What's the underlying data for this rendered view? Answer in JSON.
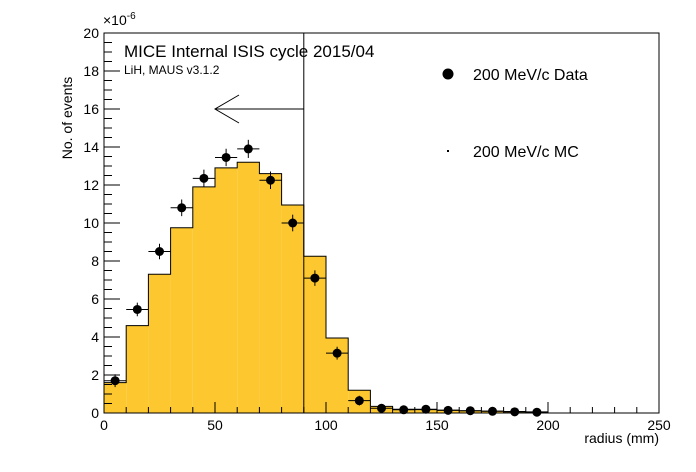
{
  "chart_data": {
    "type": "bar",
    "title": "MICE Internal ISIS cycle 2015/04",
    "subtitle": "LiH, MAUS v3.1.2",
    "xlabel": "radius (mm)",
    "ylabel": "No. of events",
    "y_exponent_label": "×10",
    "y_exponent_power": "-6",
    "xlim": [
      0,
      250
    ],
    "ylim": [
      0,
      20
    ],
    "x_ticks": [
      "0",
      "50",
      "100",
      "150",
      "200",
      "250"
    ],
    "y_ticks": [
      "0",
      "2",
      "4",
      "6",
      "8",
      "10",
      "12",
      "14",
      "16",
      "18",
      "20"
    ],
    "bin_width": 10,
    "legend_position": "top-right",
    "cut_line_x": 90,
    "cut_arrow": {
      "from_x": 90,
      "to_x": 50,
      "y": 16
    },
    "series": [
      {
        "name": "200 MeV/c Data",
        "kind": "points",
        "x": [
          5,
          15,
          25,
          35,
          45,
          55,
          65,
          75,
          85,
          95,
          105,
          115,
          125,
          135,
          145,
          155,
          165,
          175,
          185,
          195
        ],
        "values": [
          1.7,
          5.45,
          8.5,
          10.8,
          12.35,
          13.45,
          13.9,
          12.25,
          10.0,
          7.1,
          3.15,
          0.65,
          0.25,
          0.17,
          0.2,
          0.14,
          0.12,
          0.09,
          0.06,
          0.04
        ],
        "errors": [
          0.18,
          0.2,
          0.25,
          0.28,
          0.3,
          0.3,
          0.32,
          0.3,
          0.28,
          0.25,
          0.18,
          0.1,
          0.06,
          0.05,
          0.05,
          0.04,
          0.04,
          0.03,
          0.03,
          0.02
        ]
      },
      {
        "name": "200 MeV/c MC",
        "kind": "histogram",
        "x": [
          5,
          15,
          25,
          35,
          45,
          55,
          65,
          75,
          85,
          95,
          105,
          115,
          125,
          135,
          145,
          155,
          165,
          175,
          185,
          195
        ],
        "values": [
          1.6,
          4.6,
          7.3,
          9.75,
          11.9,
          12.9,
          13.2,
          12.6,
          10.95,
          8.25,
          3.95,
          1.2,
          0.35,
          0.2,
          0.18,
          0.15,
          0.12,
          0.1,
          0.08,
          0.06
        ]
      }
    ]
  },
  "colors": {
    "mc_fill": "#fdc82f",
    "data_marker": "#000000",
    "axis": "#000000"
  }
}
